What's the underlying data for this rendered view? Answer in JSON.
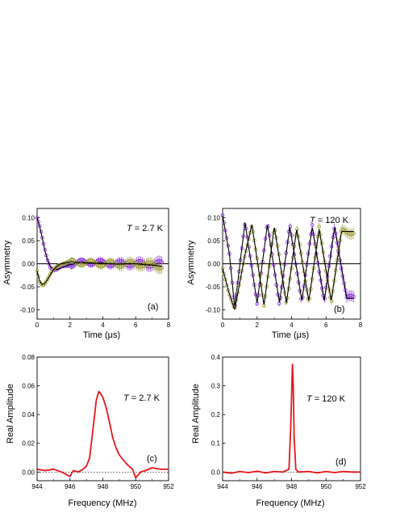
{
  "chart_data": [
    {
      "panel": "a",
      "type": "scatter",
      "xlabel": "Time (μs)",
      "ylabel": "Asymmetry",
      "annotation": {
        "var": "T",
        "rest": " = 2.7 K"
      },
      "panel_label": "(a)",
      "xlim": [
        0,
        8
      ],
      "ylim": [
        -0.12,
        0.12
      ],
      "xticks": [
        "0",
        "2",
        "4",
        "6",
        "8"
      ],
      "yticks": [
        "0.10",
        "0.05",
        "0.00",
        "-0.05",
        "-0.10"
      ],
      "colors": {
        "purple": "#8a2be2",
        "olive": "#9a9a32",
        "fit": "#000000"
      },
      "series": [
        {
          "x": [
            0,
            0.15,
            0.3,
            0.45,
            0.6,
            0.8,
            1.0,
            1.25,
            1.5,
            2.0,
            2.5,
            3.0,
            3.5,
            4.0,
            4.5,
            5.0,
            5.5,
            6.0,
            6.5,
            7.0,
            7.5
          ],
          "y": [
            0.1,
            0.082,
            0.058,
            0.033,
            0.012,
            -0.006,
            -0.013,
            -0.012,
            -0.008,
            -0.002,
            0.002,
            0.004,
            0.003,
            0.002,
            0.001,
            0.0,
            0.001,
            0.0,
            0.0,
            -0.001,
            0.0
          ]
        },
        {
          "x": [
            0,
            0.15,
            0.3,
            0.45,
            0.6,
            0.8,
            1.0,
            1.25,
            1.5,
            2.0,
            2.5,
            3.0,
            3.5,
            4.0,
            4.5,
            5.0,
            5.5,
            6.0,
            6.5,
            7.0,
            7.5
          ],
          "y": [
            -0.015,
            -0.037,
            -0.045,
            -0.043,
            -0.036,
            -0.024,
            -0.013,
            -0.004,
            0.001,
            0.004,
            0.003,
            0.002,
            0.001,
            0.0,
            0.0,
            -0.001,
            0.0,
            0.0,
            -0.002,
            -0.003,
            -0.005
          ]
        }
      ]
    },
    {
      "panel": "b",
      "type": "scatter",
      "xlabel": "Time (μs)",
      "ylabel": "Asymmetry",
      "annotation": {
        "var": "T",
        "rest": " = 120 K"
      },
      "panel_label": "(b)",
      "xlim": [
        0,
        8
      ],
      "ylim": [
        -0.12,
        0.12
      ],
      "xticks": [
        "0",
        "2",
        "4",
        "6",
        "8"
      ],
      "yticks": [
        "0.10",
        "0.05",
        "0.00",
        "-0.05",
        "-0.10"
      ],
      "colors": {
        "purple": "#8a2be2",
        "olive": "#9a9a32",
        "fit": "#000000"
      },
      "series": [
        {
          "x": [
            0,
            0.4,
            0.7,
            1.3,
            2.0,
            2.6,
            3.3,
            3.9,
            4.6,
            5.2,
            5.9,
            6.5,
            7.2
          ],
          "y": [
            0.105,
            0.02,
            -0.095,
            0.09,
            -0.085,
            0.085,
            -0.085,
            0.08,
            -0.08,
            0.08,
            -0.08,
            0.08,
            -0.075
          ]
        },
        {
          "x": [
            0,
            0.35,
            0.7,
            1.3,
            1.7,
            2.4,
            3.0,
            3.7,
            4.3,
            5.0,
            5.6,
            6.3,
            6.9
          ],
          "y": [
            -0.01,
            -0.06,
            -0.1,
            0.02,
            0.085,
            -0.09,
            0.08,
            -0.085,
            0.075,
            -0.08,
            0.075,
            -0.08,
            0.07
          ]
        }
      ]
    },
    {
      "panel": "c",
      "type": "line",
      "xlabel": "Frequency (MHz)",
      "ylabel": "Real Amplitude",
      "annotation": {
        "var": "T",
        "rest": " = 2.7 K"
      },
      "panel_label": "(c)",
      "xlim": [
        944,
        952
      ],
      "ylim": [
        -0.006,
        0.08
      ],
      "xticks": [
        "944",
        "946",
        "948",
        "950",
        "952"
      ],
      "yticks": [
        "0.08",
        "0.06",
        "0.04",
        "0.02",
        "0.00"
      ],
      "colors": {
        "line": "#e4161c"
      },
      "x": [
        944.0,
        944.5,
        945.0,
        945.5,
        946.0,
        946.2,
        946.5,
        946.8,
        947.0,
        947.2,
        947.4,
        947.6,
        947.75,
        947.85,
        948.0,
        948.2,
        948.4,
        948.6,
        948.8,
        949.0,
        949.2,
        949.5,
        949.8,
        950.0,
        950.3,
        950.6,
        951.0,
        951.5,
        952.0
      ],
      "y": [
        0.002,
        0.001,
        0.002,
        0.0,
        -0.003,
        0.001,
        0.0,
        0.002,
        0.004,
        0.01,
        0.03,
        0.05,
        0.056,
        0.055,
        0.052,
        0.045,
        0.035,
        0.024,
        0.017,
        0.012,
        0.009,
        0.005,
        0.002,
        -0.004,
        0.0,
        0.001,
        0.003,
        0.002,
        0.002
      ]
    },
    {
      "panel": "d",
      "type": "line",
      "xlabel": "Frequency (MHz)",
      "ylabel": "Real Amplitude",
      "annotation": {
        "var": "T",
        "rest": " = 120 K"
      },
      "panel_label": "(d)",
      "xlim": [
        944,
        952
      ],
      "ylim": [
        -0.03,
        0.4
      ],
      "xticks": [
        "944",
        "946",
        "948",
        "950",
        "952"
      ],
      "yticks": [
        "0.4",
        "0.3",
        "0.2",
        "0.1",
        "0.0"
      ],
      "colors": {
        "line": "#e4161c"
      },
      "x": [
        944.0,
        944.5,
        945.0,
        945.5,
        946.0,
        946.5,
        947.0,
        947.5,
        947.85,
        947.95,
        948.05,
        948.1,
        948.15,
        948.25,
        948.4,
        949.0,
        949.5,
        950.0,
        950.5,
        951.0,
        951.5,
        952.0
      ],
      "y": [
        0.0,
        -0.004,
        0.002,
        -0.002,
        0.003,
        -0.003,
        0.002,
        0.0,
        0.01,
        0.15,
        0.375,
        0.3,
        0.12,
        0.01,
        0.0,
        0.002,
        -0.003,
        0.002,
        -0.002,
        0.002,
        0.0,
        0.0
      ]
    }
  ]
}
